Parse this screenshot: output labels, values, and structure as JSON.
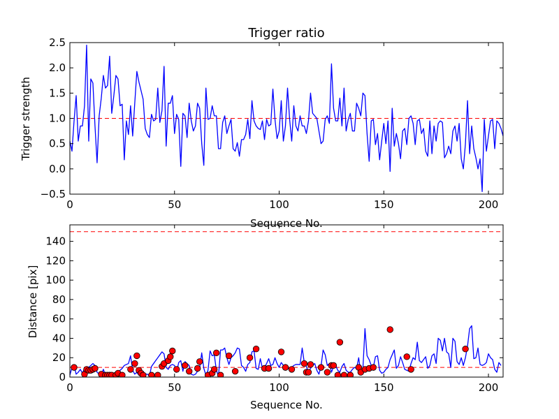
{
  "chart_data": [
    {
      "type": "line",
      "title": "Trigger ratio",
      "xlabel": "Sequence No.",
      "ylabel": "Trigger strength",
      "xlim": [
        0,
        207
      ],
      "ylim": [
        -0.5,
        2.5
      ],
      "xticks": [
        0,
        50,
        100,
        150,
        200
      ],
      "yticks": [
        -0.5,
        0.0,
        0.5,
        1.0,
        1.5,
        2.0,
        2.5
      ],
      "ytick_labels": [
        "−0.5",
        "0.0",
        "0.5",
        "1.0",
        "1.5",
        "2.0",
        "2.5"
      ],
      "threshold": 1.0,
      "series": [
        {
          "name": "trigger strength",
          "color": "#0000ff",
          "values": [
            0.55,
            0.35,
            0.95,
            1.45,
            0.55,
            0.85,
            0.85,
            1.25,
            2.45,
            0.55,
            1.78,
            1.7,
            0.85,
            0.12,
            1.05,
            1.4,
            1.85,
            1.6,
            1.65,
            2.23,
            1.1,
            1.45,
            1.85,
            1.78,
            1.25,
            1.28,
            0.18,
            0.95,
            0.68,
            1.25,
            0.65,
            1.3,
            1.93,
            1.72,
            1.55,
            1.38,
            0.8,
            0.68,
            0.62,
            1.08,
            0.95,
            0.98,
            1.6,
            0.92,
            1.15,
            2.03,
            0.45,
            1.3,
            1.3,
            1.45,
            0.7,
            1.08,
            0.98,
            0.05,
            1.1,
            1.05,
            0.62,
            1.3,
            0.95,
            0.75,
            0.85,
            1.3,
            1.2,
            0.5,
            0.07,
            1.6,
            0.98,
            1.0,
            1.25,
            1.05,
            1.05,
            0.4,
            0.4,
            0.92,
            1.05,
            0.7,
            0.85,
            0.98,
            0.4,
            0.35,
            0.52,
            0.25,
            0.58,
            0.58,
            0.68,
            0.98,
            0.6,
            1.35,
            0.95,
            0.85,
            0.8,
            0.78,
            0.95,
            0.58,
            0.98,
            0.85,
            0.88,
            1.58,
            0.98,
            0.6,
            0.75,
            1.35,
            0.55,
            0.85,
            1.6,
            0.98,
            0.55,
            1.25,
            0.85,
            0.75,
            1.05,
            0.85,
            0.85,
            0.7,
            0.95,
            1.5,
            1.1,
            1.05,
            1.0,
            0.75,
            0.5,
            0.55,
            0.98,
            1.05,
            0.9,
            2.08,
            1.2,
            0.95,
            0.95,
            1.4,
            0.85,
            1.6,
            0.75,
            0.98,
            1.1,
            0.75,
            0.75,
            1.3,
            1.2,
            1.05,
            1.5,
            1.45,
            0.7,
            0.15,
            0.95,
            0.98,
            0.48,
            0.7,
            0.18,
            0.55,
            0.9,
            0.5,
            0.95,
            -0.05,
            1.2,
            0.45,
            0.7,
            0.5,
            0.2,
            0.75,
            0.8,
            0.48,
            1.0,
            1.05,
            0.9,
            0.48,
            0.95,
            0.98,
            0.7,
            0.8,
            0.35,
            0.25,
            0.95,
            0.3,
            0.85,
            0.55,
            0.9,
            0.95,
            0.92,
            0.22,
            0.3,
            0.45,
            0.3,
            0.75,
            0.85,
            0.55,
            0.9,
            0.2,
            0.0,
            0.5,
            1.35,
            0.3,
            0.85,
            0.4,
            0.22,
            0.0,
            0.2,
            -0.45,
            0.98,
            0.35,
            0.65,
            0.95,
            0.98,
            0.4,
            0.95,
            0.9,
            0.8,
            0.65
          ]
        }
      ]
    },
    {
      "type": "line",
      "title": "",
      "xlabel": "Sequence No.",
      "ylabel": "Distance [pix]",
      "xlim": [
        0,
        207
      ],
      "ylim": [
        0,
        157
      ],
      "xticks": [
        0,
        50,
        100,
        150,
        200
      ],
      "yticks": [
        0,
        20,
        40,
        60,
        80,
        100,
        120,
        140
      ],
      "thresholds": [
        10,
        150
      ],
      "series": [
        {
          "name": "distance",
          "color": "#0000ff",
          "values": [
            2,
            10,
            12,
            3,
            5,
            8,
            4,
            9,
            8,
            10,
            12,
            14,
            12,
            5,
            3,
            2,
            8,
            2,
            3,
            5,
            2,
            4,
            3,
            5,
            7,
            9,
            12,
            13,
            14,
            22,
            7,
            3,
            5,
            2,
            1,
            6,
            3,
            3,
            1,
            11,
            14,
            17,
            20,
            23,
            26,
            24,
            10,
            8,
            12,
            13,
            12,
            5,
            15,
            17,
            6,
            16,
            14,
            12,
            3,
            2,
            3,
            6,
            9,
            25,
            9,
            2,
            7,
            27,
            22,
            23,
            7,
            1,
            28,
            28,
            30,
            20,
            13,
            20,
            22,
            25,
            30,
            29,
            12,
            10,
            6,
            13,
            15,
            26,
            27,
            9,
            8,
            19,
            9,
            10,
            14,
            19,
            12,
            13,
            20,
            14,
            10,
            15,
            12,
            13,
            11,
            7,
            10,
            12,
            13,
            13,
            13,
            30,
            15,
            11,
            5,
            9,
            12,
            14,
            7,
            3,
            11,
            28,
            23,
            12,
            14,
            5,
            11,
            12,
            7,
            5,
            11,
            14,
            7,
            5,
            5,
            8,
            10,
            9,
            20,
            4,
            8,
            50,
            22,
            18,
            12,
            10,
            21,
            22,
            7,
            4,
            5,
            8,
            10,
            18,
            23,
            28,
            9,
            12,
            21,
            15,
            8,
            7,
            6,
            14,
            20,
            18,
            36,
            17,
            15,
            18,
            21,
            9,
            12,
            22,
            24,
            14,
            40,
            38,
            27,
            40,
            26,
            24,
            10,
            40,
            37,
            16,
            13,
            20,
            12,
            20,
            32,
            50,
            53,
            19,
            20,
            30,
            13,
            12,
            13,
            15,
            24,
            20,
            18,
            8,
            5,
            15,
            12
          ]
        },
        {
          "name": "flagged points",
          "color": "#ff0000",
          "points": [
            [
              2,
              10
            ],
            [
              7,
              3
            ],
            [
              8,
              8
            ],
            [
              9,
              7
            ],
            [
              10,
              7
            ],
            [
              11,
              8
            ],
            [
              12,
              9
            ],
            [
              15,
              3
            ],
            [
              17,
              2
            ],
            [
              18,
              2
            ],
            [
              19,
              2
            ],
            [
              20,
              2
            ],
            [
              22,
              2
            ],
            [
              23,
              4
            ],
            [
              25,
              2
            ],
            [
              29,
              8
            ],
            [
              31,
              14
            ],
            [
              32,
              22
            ],
            [
              33,
              7
            ],
            [
              34,
              4
            ],
            [
              35,
              2
            ],
            [
              39,
              2
            ],
            [
              42,
              2
            ],
            [
              44,
              11
            ],
            [
              45,
              14
            ],
            [
              47,
              17
            ],
            [
              48,
              21
            ],
            [
              49,
              27
            ],
            [
              51,
              8
            ],
            [
              55,
              12
            ],
            [
              57,
              6
            ],
            [
              61,
              9
            ],
            [
              62,
              16
            ],
            [
              66,
              2
            ],
            [
              68,
              4
            ],
            [
              69,
              8
            ],
            [
              70,
              25
            ],
            [
              72,
              2
            ],
            [
              76,
              22
            ],
            [
              79,
              6
            ],
            [
              86,
              20
            ],
            [
              89,
              29
            ],
            [
              93,
              9
            ],
            [
              95,
              9
            ],
            [
              101,
              26
            ],
            [
              103,
              10
            ],
            [
              106,
              8
            ],
            [
              112,
              14
            ],
            [
              113,
              5
            ],
            [
              114,
              5
            ],
            [
              115,
              13
            ],
            [
              120,
              10
            ],
            [
              123,
              5
            ],
            [
              125,
              12
            ],
            [
              126,
              12
            ],
            [
              128,
              2
            ],
            [
              129,
              36
            ],
            [
              131,
              2
            ],
            [
              134,
              2
            ],
            [
              138,
              10
            ],
            [
              139,
              5
            ],
            [
              141,
              8
            ],
            [
              143,
              9
            ],
            [
              145,
              10
            ],
            [
              153,
              49
            ],
            [
              161,
              21
            ],
            [
              163,
              8
            ],
            [
              189,
              29
            ]
          ]
        }
      ]
    }
  ]
}
